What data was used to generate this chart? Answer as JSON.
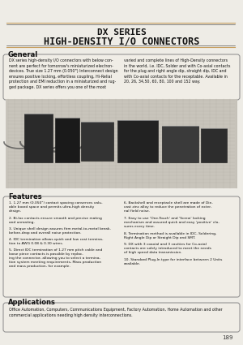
{
  "bg_color": "#eeece6",
  "title_line1": "DX SERIES",
  "title_line2": "HIGH-DENSITY I/O CONNECTORS",
  "general_title": "General",
  "general_text_left": "DX series high-density I/O connectors with below con-\nnent are perfect for tomorrow's miniaturized electron-\ndevices. True size 1.27 mm (0.050\") Interconnect design\nensures positive locking, effortless coupling, Hi-ReIial\nprotection and EMI reduction in a miniaturized and rug-\nged package. DX series offers you one of the most",
  "general_text_right": "varied and complete lines of High-Density connectors\nin the world, i.e. IDC, Solder and with Co-axial contacts\nfor the plug and right angle dip, straight dip, IDC and\nwith Co-axial contacts for the receptable. Available in\n20, 26, 34,50, 60, 80, 100 and 152 way.",
  "features_title": "Features",
  "features_left": [
    "1.27 mm (0.050\") contact spacing conserves valu-\nable board space and permits ultra-high density\ndesign.",
    "Bi-lox contacts ensure smooth and precise mating\nand unmating.",
    "Unique shell design assures firm metal-to-metal break-\nbefore-drop and overall noise protection.",
    "IDC termination allows quick and low cost termina-\ntion to AWG 0.08 & 0.30 wires.",
    "Direct IDC termination of 1.27 mm pitch cable and\nloose piece contacts is possible by replac-\ning the connector, allowing you to select a termina-\ntion system meeting requirements, Mass production\nand mass production, for example."
  ],
  "features_right": [
    "Backshell and receptacle shell are made of Die-\ncast zinc alloy to reduce the penetration of exter-\nnal field noise.",
    "Easy to use 'One-Touch' and 'Screw' locking\nmechanism and assured quick and easy 'positive' clo-\nsures every time.",
    "Termination method is available in IDC, Soldering,\nRight Angle Dip or Straight Dip and SMT.",
    "DX with 3 coaxial and 3 cavities for Co-axial\ncontacts are solely introduced to meet the needs\nof high speed data transmission.",
    "Standard Plug-In type for interface between 2 Units\navailable."
  ],
  "applications_title": "Applications",
  "applications_text": "Office Automation, Computers, Communications Equipment, Factory Automation, Home Automation and other\ncommercial applications needing high density interconnections.",
  "page_number": "189",
  "header_line_color": "#c8a060",
  "box_border_color": "#888888",
  "text_color": "#111111",
  "img_bg": "#c8c4bb"
}
